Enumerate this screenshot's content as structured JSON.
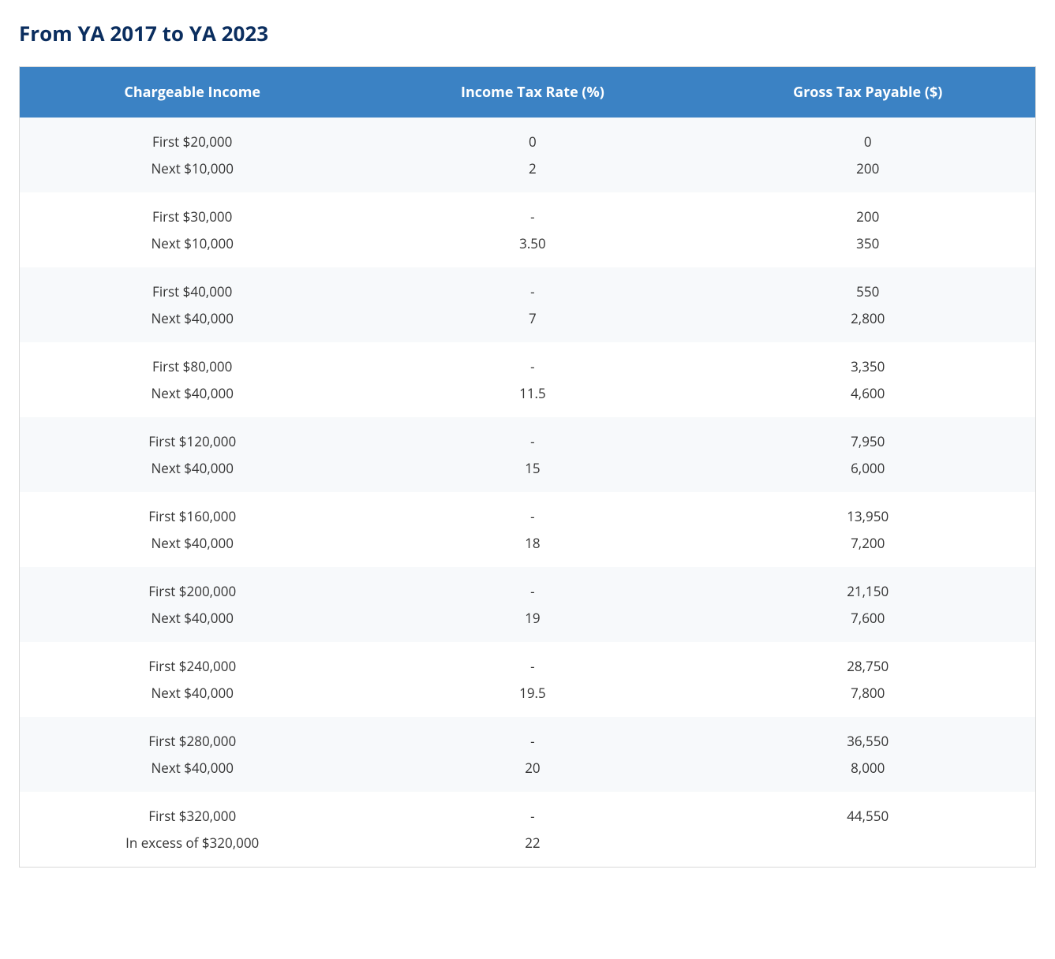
{
  "title": "From YA 2017 to YA 2023",
  "colors": {
    "title_color": "#0b2e5f",
    "header_bg": "#3b82c4",
    "header_text": "#ffffff",
    "row_stripe_bg": "#f7f9fb",
    "border_color": "#d9d9d9",
    "cell_text": "#333333"
  },
  "table": {
    "type": "table",
    "columns": [
      "Chargeable Income",
      "Income Tax Rate (%)",
      "Gross Tax Payable ($)"
    ],
    "column_widths_pct": [
      34,
      33,
      33
    ],
    "header_fontsize": 18,
    "cell_fontsize": 17,
    "brackets": [
      {
        "lines": [
          {
            "income": "First $20,000",
            "rate": "0",
            "tax": "0"
          },
          {
            "income": "Next $10,000",
            "rate": "2",
            "tax": "200"
          }
        ]
      },
      {
        "lines": [
          {
            "income": "First $30,000",
            "rate": "-",
            "tax": "200"
          },
          {
            "income": "Next $10,000",
            "rate": "3.50",
            "tax": "350"
          }
        ]
      },
      {
        "lines": [
          {
            "income": "First $40,000",
            "rate": "-",
            "tax": "550"
          },
          {
            "income": "Next $40,000",
            "rate": "7",
            "tax": "2,800"
          }
        ]
      },
      {
        "lines": [
          {
            "income": "First $80,000",
            "rate": "-",
            "tax": "3,350"
          },
          {
            "income": "Next $40,000",
            "rate": "11.5",
            "tax": "4,600"
          }
        ]
      },
      {
        "lines": [
          {
            "income": "First $120,000",
            "rate": "-",
            "tax": "7,950"
          },
          {
            "income": "Next $40,000",
            "rate": "15",
            "tax": "6,000"
          }
        ]
      },
      {
        "lines": [
          {
            "income": "First $160,000",
            "rate": "-",
            "tax": "13,950"
          },
          {
            "income": "Next $40,000",
            "rate": "18",
            "tax": "7,200"
          }
        ]
      },
      {
        "lines": [
          {
            "income": "First $200,000",
            "rate": "-",
            "tax": "21,150"
          },
          {
            "income": "Next $40,000",
            "rate": "19",
            "tax": "7,600"
          }
        ]
      },
      {
        "lines": [
          {
            "income": "First $240,000",
            "rate": "-",
            "tax": "28,750"
          },
          {
            "income": "Next $40,000",
            "rate": "19.5",
            "tax": "7,800"
          }
        ]
      },
      {
        "lines": [
          {
            "income": "First $280,000",
            "rate": "-",
            "tax": "36,550"
          },
          {
            "income": "Next $40,000",
            "rate": "20",
            "tax": "8,000"
          }
        ]
      },
      {
        "lines": [
          {
            "income": "First $320,000",
            "rate": "-",
            "tax": "44,550"
          },
          {
            "income": "In excess of $320,000",
            "rate": "22",
            "tax": ""
          }
        ]
      }
    ]
  }
}
